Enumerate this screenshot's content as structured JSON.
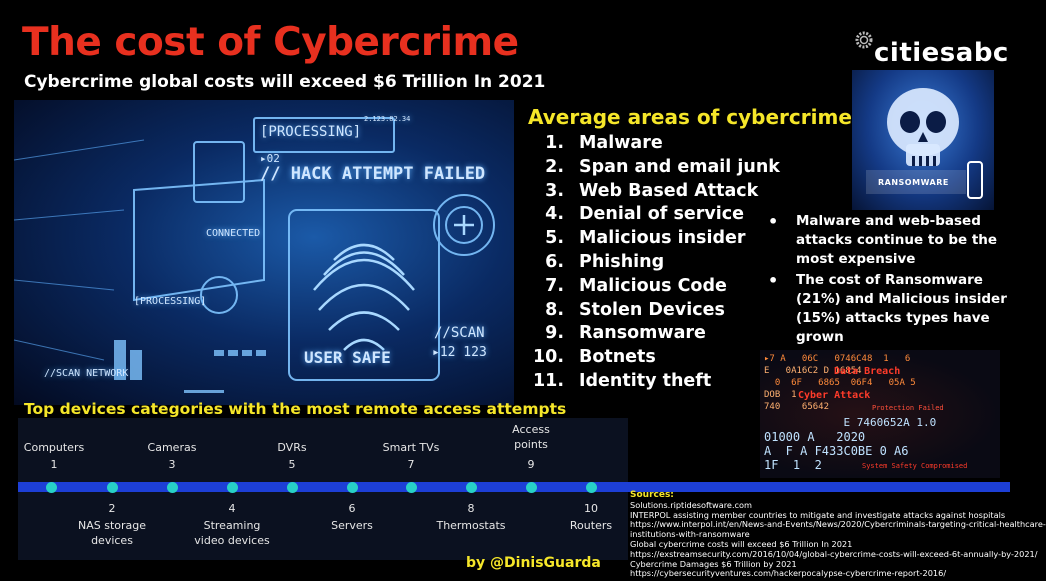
{
  "header": {
    "title": "The cost of Cybercrime",
    "subtitle": "Cybercrime global costs will exceed $6 Trillion In 2021"
  },
  "brand": {
    "name": "citiesabc",
    "icon": "gear-icon"
  },
  "hero": {
    "processing": "[PROCESSING]",
    "hack": "// HACK ATTEMPT FAILED",
    "code02": "▸02",
    "connected": "CONNECTED",
    "user_safe": "USER SAFE",
    "scan": "//SCAN",
    "scan_num": "▸12 123",
    "scan_network": "//SCAN NETWORK",
    "processing2": "[PROCESSING]",
    "ip": "2.123.82.34"
  },
  "ransomware_label": "RANSOMWARE",
  "areas": {
    "title": "Average areas of cybercrime",
    "items": [
      {
        "num": "1.",
        "label": "Malware"
      },
      {
        "num": "2.",
        "label": "Span and email junk"
      },
      {
        "num": "3.",
        "label": "Web Based Attack"
      },
      {
        "num": "4.",
        "label": "Denial of service"
      },
      {
        "num": "5.",
        "label": "Malicious insider"
      },
      {
        "num": "6.",
        "label": "Phishing"
      },
      {
        "num": "7.",
        "label": "Malicious Code"
      },
      {
        "num": "8.",
        "label": "Stolen Devices"
      },
      {
        "num": "9.",
        "label": "Ransomware"
      },
      {
        "num": "10.",
        "label": "Botnets"
      },
      {
        "num": "11.",
        "label": "Identity theft"
      }
    ]
  },
  "notes": [
    "Malware and web-based attacks continue to be the most expensive",
    "The cost of Ransomware (21%) and Malicious insider (15%) attacks types have grown"
  ],
  "code_image": {
    "data_breach": "Data Breach",
    "cyber_attack": "Cyber Attack",
    "protection_failed": "Protection Failed",
    "system_safety": "System Safety Compromised"
  },
  "devices": {
    "title": "Top devices categories with the most remote access attempts",
    "items": [
      {
        "rank": "1",
        "label": "Computers"
      },
      {
        "rank": "2",
        "label": "NAS storage devices"
      },
      {
        "rank": "3",
        "label": "Cameras"
      },
      {
        "rank": "4",
        "label": "Streaming video devices"
      },
      {
        "rank": "5",
        "label": "DVRs"
      },
      {
        "rank": "6",
        "label": "Servers"
      },
      {
        "rank": "7",
        "label": "Smart TVs"
      },
      {
        "rank": "8",
        "label": "Thermostats"
      },
      {
        "rank": "9",
        "label": "Access points"
      },
      {
        "rank": "10",
        "label": "Routers"
      }
    ]
  },
  "sources": {
    "title": "Sources:",
    "lines": [
      "Solutions.riptidesoftware.com",
      "INTERPOL assisting member countries to mitigate and investigate attacks against hospitals",
      "https://www.interpol.int/en/News-and-Events/News/2020/Cybercriminals-targeting-critical-healthcare-",
      "institutions-with-ransomware",
      "Global cybercrime costs will exceed $6 Trillion In 2021",
      "https://exstreamsecurity.com/2016/10/04/global-cybercrime-costs-will-exceed-6t-annually-by-2021/",
      "Cybercrime Damages $6 Trillion by 2021",
      "https://cybersecurityventures.com/hackerpocalypse-cybercrime-report-2016/"
    ]
  },
  "byline": "by @DinisGuarda"
}
